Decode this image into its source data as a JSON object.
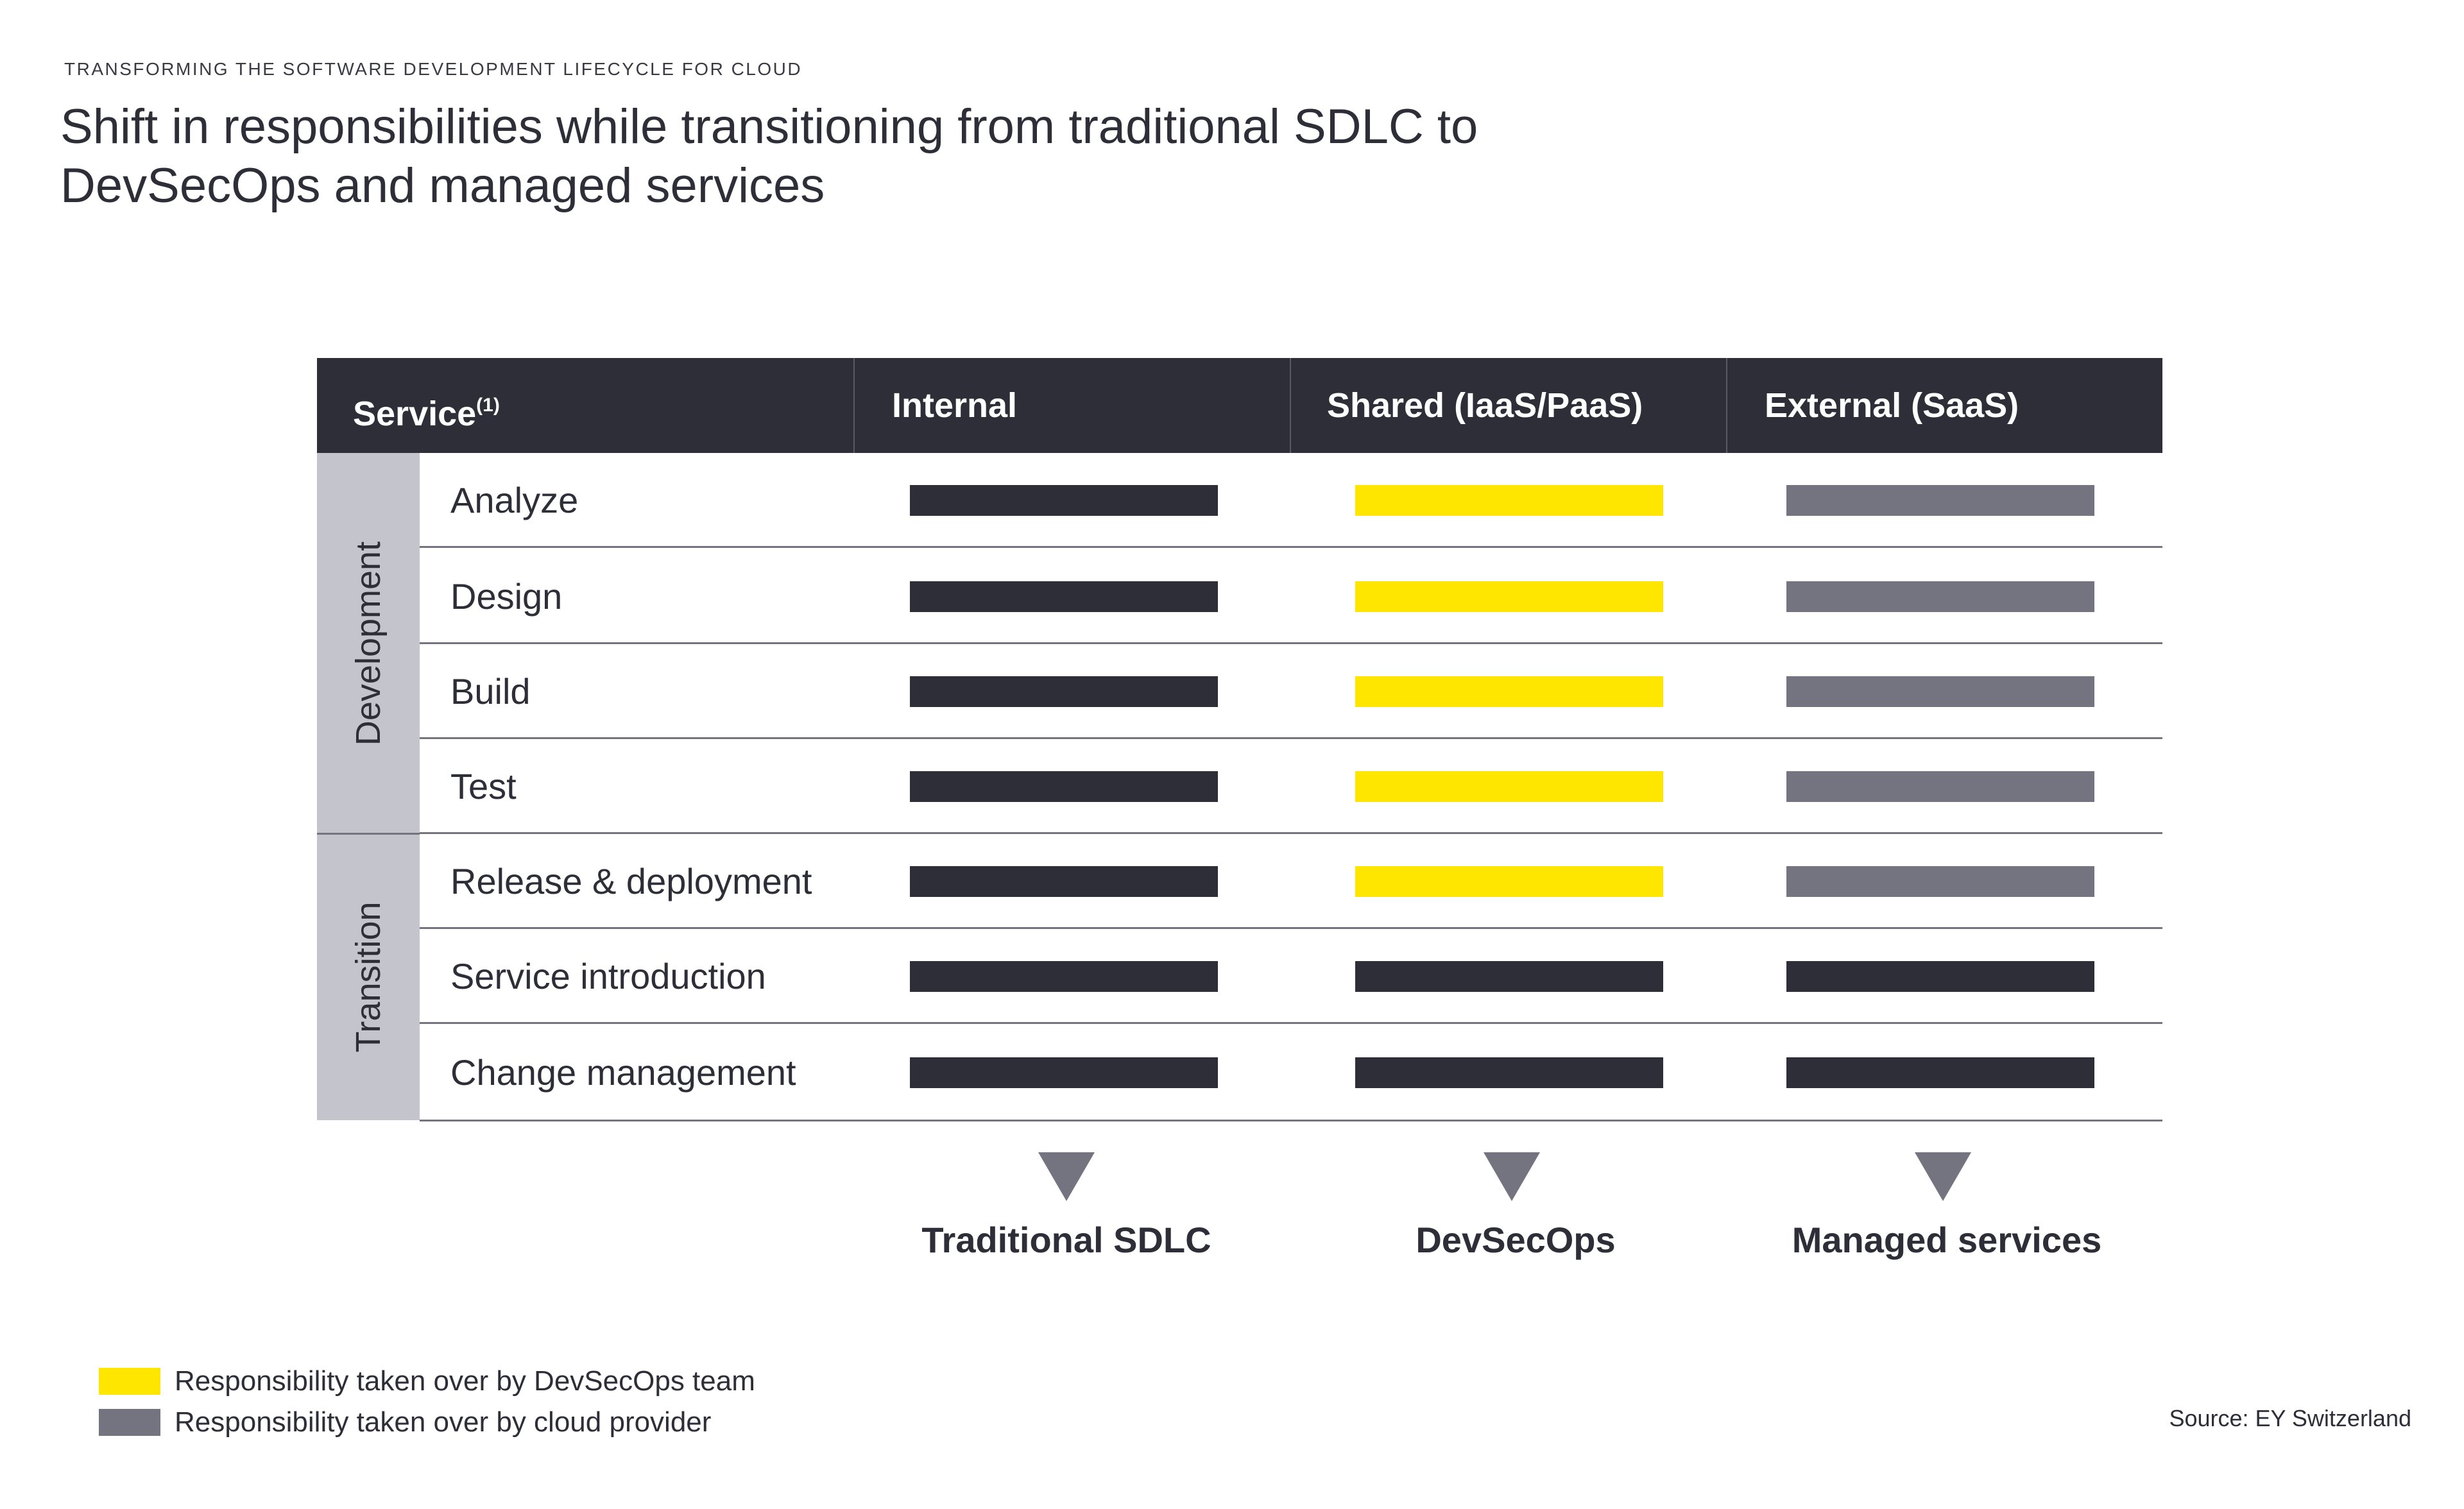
{
  "header": {
    "eyebrow": "TRANSFORMING THE SOFTWARE DEVELOPMENT LIFECYCLE FOR CLOUD",
    "title": "Shift in responsibilities while transitioning from traditional SDLC to DevSecOps and managed services"
  },
  "colors": {
    "internal": "#2e2e38",
    "devsecops": "#ffe600",
    "cloud_provider": "#747480"
  },
  "table": {
    "columns": {
      "service": "Service",
      "service_footnote": "(1)",
      "internal": "Internal",
      "shared": "Shared (IaaS/PaaS)",
      "external": "External (SaaS)"
    },
    "groups": [
      {
        "label": "Development"
      },
      {
        "label": "Transition"
      }
    ],
    "rows": [
      {
        "label": "Analyze",
        "group": "Development",
        "internal": "internal",
        "shared": "devsecops",
        "external": "cloud_provider"
      },
      {
        "label": "Design",
        "group": "Development",
        "internal": "internal",
        "shared": "devsecops",
        "external": "cloud_provider"
      },
      {
        "label": "Build",
        "group": "Development",
        "internal": "internal",
        "shared": "devsecops",
        "external": "cloud_provider"
      },
      {
        "label": "Test",
        "group": "Development",
        "internal": "internal",
        "shared": "devsecops",
        "external": "cloud_provider"
      },
      {
        "label": "Release & deployment",
        "group": "Transition",
        "internal": "internal",
        "shared": "devsecops",
        "external": "cloud_provider"
      },
      {
        "label": "Service introduction",
        "group": "Transition",
        "internal": "internal",
        "shared": "internal",
        "external": "internal"
      },
      {
        "label": "Change management",
        "group": "Transition",
        "internal": "internal",
        "shared": "internal",
        "external": "internal"
      }
    ]
  },
  "models": [
    {
      "label": "Traditional SDLC"
    },
    {
      "label": "DevSecOps"
    },
    {
      "label": "Managed services"
    }
  ],
  "legend": [
    {
      "label": "Responsibility taken over by DevSecOps team",
      "color_key": "devsecops"
    },
    {
      "label": "Responsibility taken over by cloud provider",
      "color_key": "cloud_provider"
    }
  ],
  "source": "Source: EY Switzerland"
}
